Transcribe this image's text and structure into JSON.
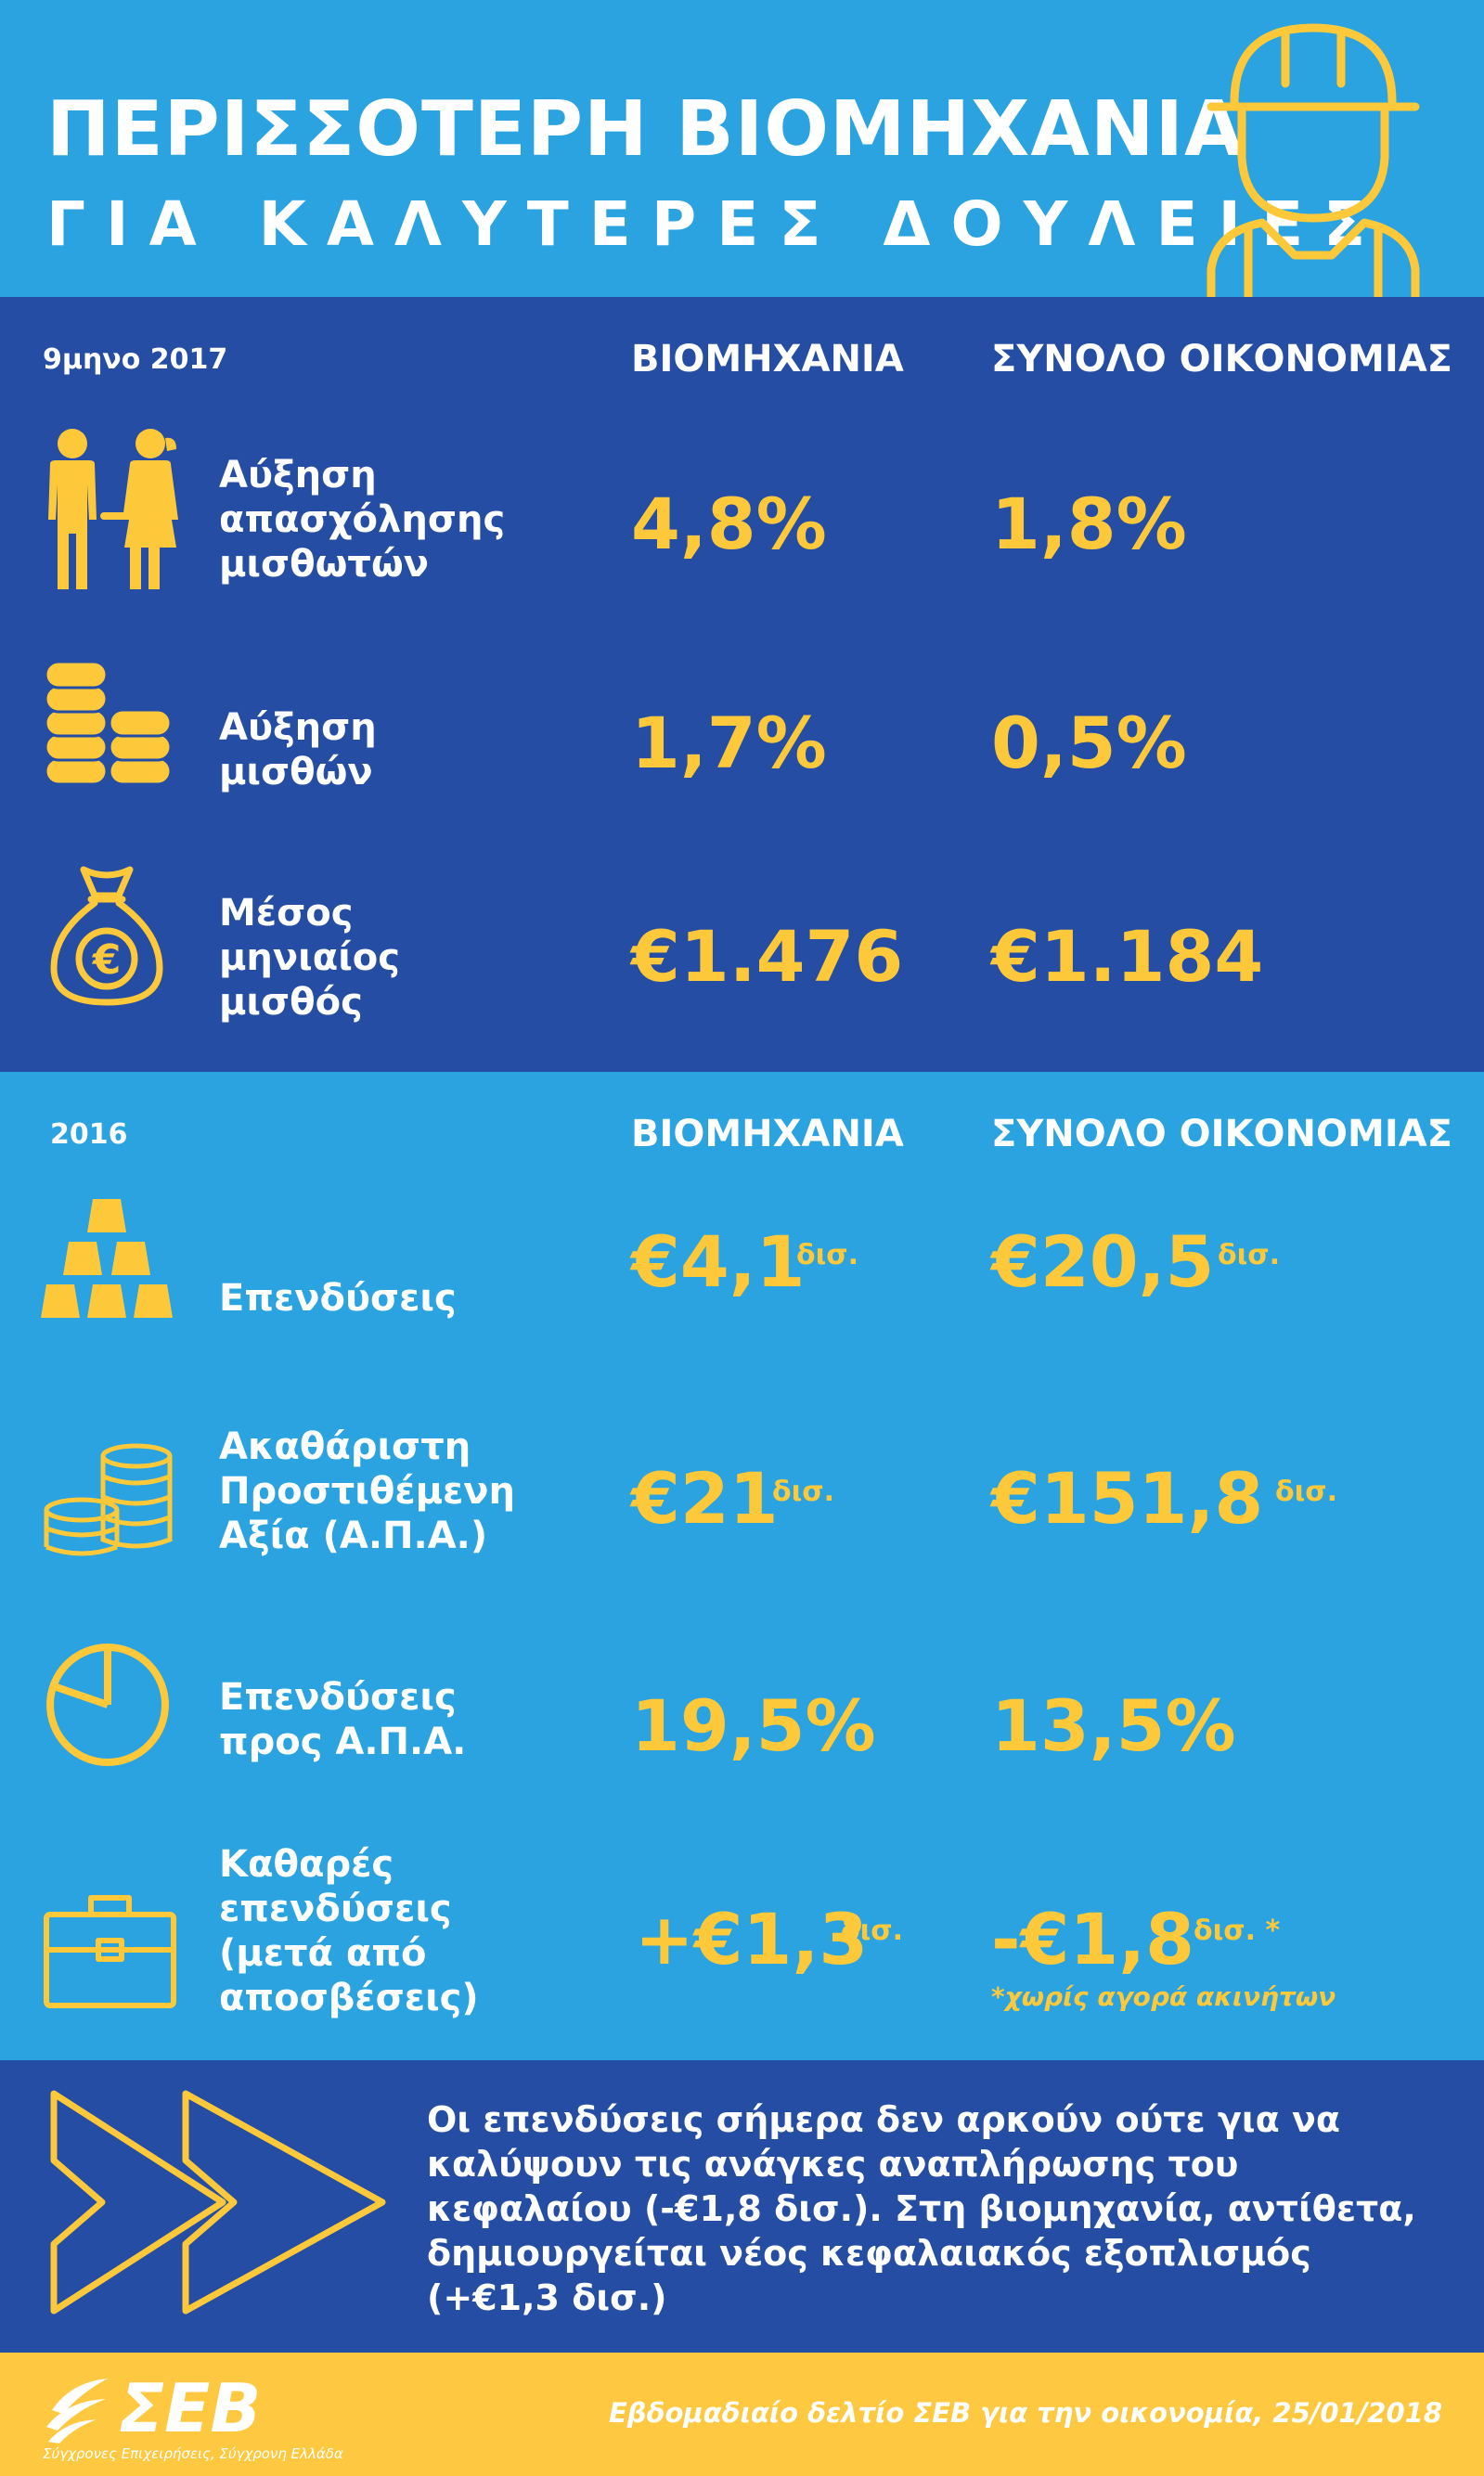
{
  "header": {
    "title_line1": "ΠΕΡΙΣΣΟΤΕΡΗ ΒΙΟΜΗΧΑΝΙΑ",
    "title_line2": "ΓΙΑ ΚΑΛΥΤΕΡΕΣ ΔΟΥΛΕΙΕΣ",
    "icon": "construction-worker-icon"
  },
  "colors": {
    "dark_blue": "#244da3",
    "light_blue": "#2aa3e0",
    "yellow": "#fdc93a",
    "white": "#ffffff"
  },
  "section1": {
    "period": "9μηνο 2017",
    "col_industry": "ΒΙΟΜΗΧΑΝΙΑ",
    "col_economy": "ΣΥΝΟΛΟ ΟΙΚΟΝΟΜΙΑΣ",
    "rows": [
      {
        "icon": "couple-icon",
        "label_lines": [
          "Αύξηση",
          "απασχόλησης",
          "μισθωτών"
        ],
        "industry": "4,8%",
        "economy": "1,8%"
      },
      {
        "icon": "coin-stacks-icon",
        "label_lines": [
          "Αύξηση",
          "μισθών"
        ],
        "industry": "1,7%",
        "economy": "0,5%"
      },
      {
        "icon": "money-bag-euro-icon",
        "label_lines": [
          "Μέσος",
          "μηνιαίος",
          "μισθός"
        ],
        "industry": "€1.476",
        "economy": "€1.184"
      }
    ]
  },
  "section2": {
    "period": "2016",
    "col_industry": "ΒΙΟΜΗΧΑΝΙΑ",
    "col_economy": "ΣΥΝΟΛΟ ΟΙΚΟΝΟΜΙΑΣ",
    "rows": [
      {
        "icon": "gold-bars-icon",
        "label_lines": [
          "Επενδύσεις"
        ],
        "industry": "€4,1",
        "industry_unit": "δισ.",
        "economy": "€20,5",
        "economy_unit": "δισ."
      },
      {
        "icon": "coins-icon",
        "label_lines": [
          "Ακαθάριστη",
          "Προστιθέμενη",
          "Αξία (Α.Π.Α.)"
        ],
        "industry": "€21",
        "industry_unit": "δισ.",
        "economy": "€151,8",
        "economy_unit": "δισ."
      },
      {
        "icon": "pie-chart-icon",
        "label_lines": [
          "Επενδύσεις",
          "προς Α.Π.Α."
        ],
        "industry": "19,5%",
        "economy": "13,5%"
      },
      {
        "icon": "briefcase-icon",
        "label_lines": [
          "Καθαρές",
          "επενδύσεις",
          "(μετά από",
          "αποσβέσεις)"
        ],
        "industry": "+€1,3",
        "industry_unit": "δισ.",
        "economy": "-€1,8",
        "economy_unit": "δισ. *",
        "economy_note": "*χωρίς αγορά ακινήτων"
      }
    ]
  },
  "conclusion": {
    "icon": "double-arrow-icon",
    "lines": [
      "Οι επενδύσεις σήμερα δεν αρκούν ούτε για να",
      "καλύψουν τις ανάγκες αναπλήρωσης του",
      "κεφαλαίου (-€1,8 δισ.). Στη βιομηχανία, αντίθετα,",
      "δημιουργείται νέος κεφαλαιακός εξοπλισμός",
      "(+€1,3 δισ.)"
    ]
  },
  "footer": {
    "logo_text": "ΣΕΒ",
    "tagline": "Σύγχρονες Επιχειρήσεις, Σύγχρονη Ελλάδα",
    "source": "Εβδομαδιαίο δελτίο ΣΕΒ για την οικονομία, 25/01/2018"
  }
}
